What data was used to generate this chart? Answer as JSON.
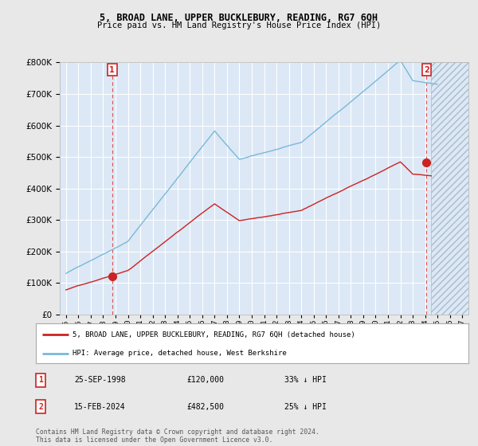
{
  "title": "5, BROAD LANE, UPPER BUCKLEBURY, READING, RG7 6QH",
  "subtitle": "Price paid vs. HM Land Registry's House Price Index (HPI)",
  "legend_line1": "5, BROAD LANE, UPPER BUCKLEBURY, READING, RG7 6QH (detached house)",
  "legend_line2": "HPI: Average price, detached house, West Berkshire",
  "transaction1_date": "25-SEP-1998",
  "transaction1_price": "£120,000",
  "transaction1_hpi": "33% ↓ HPI",
  "transaction2_date": "15-FEB-2024",
  "transaction2_price": "£482,500",
  "transaction2_hpi": "25% ↓ HPI",
  "footnote": "Contains HM Land Registry data © Crown copyright and database right 2024.\nThis data is licensed under the Open Government Licence v3.0.",
  "hpi_color": "#7ab8d9",
  "price_color": "#cc2222",
  "background_color": "#e8e8e8",
  "plot_background": "#dce8f5",
  "grid_color": "#ffffff",
  "hatch_color": "#c8d8e8",
  "ylim": [
    0,
    800000
  ],
  "yticks": [
    0,
    100000,
    200000,
    300000,
    400000,
    500000,
    600000,
    700000,
    800000
  ],
  "xlim_start": 1994.5,
  "xlim_end": 2027.5,
  "hatch_start": 2024.5,
  "transaction1_x": 1998.73,
  "transaction1_y": 120000,
  "transaction2_x": 2024.12,
  "transaction2_y": 482500
}
